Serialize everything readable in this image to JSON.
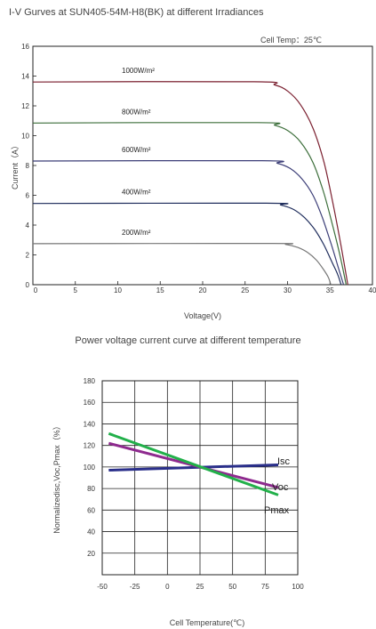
{
  "chart_data": [
    {
      "type": "line",
      "title": "I-V Gurves at SUN405-54M-H8(BK) at different Irradiances",
      "annotation": "Cell Temp：25℃",
      "xlabel": "Voltage(V)",
      "ylabel": "Current（A）",
      "xlim": [
        0,
        40
      ],
      "ylim": [
        0,
        16
      ],
      "xticks": [
        "0",
        "5",
        "10",
        "15",
        "20",
        "25",
        "30",
        "35",
        "40"
      ],
      "yticks": [
        "0",
        "2",
        "4",
        "6",
        "8",
        "10",
        "12",
        "14",
        "16"
      ],
      "grid": false,
      "series": [
        {
          "name": "1000W/m²",
          "color": "#7b2030",
          "points": [
            [
              0,
              13.6
            ],
            [
              26,
              13.62
            ],
            [
              28.5,
              13.4
            ],
            [
              30,
              13.0
            ],
            [
              31.5,
              12.1
            ],
            [
              33,
              10.5
            ],
            [
              34.3,
              8.2
            ],
            [
              35.4,
              5.3
            ],
            [
              36.3,
              2.6
            ],
            [
              37.1,
              0
            ]
          ]
        },
        {
          "name": "800W/m²",
          "color": "#3c6e3a",
          "points": [
            [
              0,
              10.85
            ],
            [
              26.5,
              10.88
            ],
            [
              28.5,
              10.7
            ],
            [
              30,
              10.35
            ],
            [
              31.5,
              9.6
            ],
            [
              33,
              8.2
            ],
            [
              34.2,
              6.3
            ],
            [
              35.3,
              4.0
            ],
            [
              36.2,
              1.9
            ],
            [
              36.9,
              0
            ]
          ]
        },
        {
          "name": "600W/m²",
          "color": "#3d3f78",
          "points": [
            [
              0,
              8.3
            ],
            [
              27,
              8.32
            ],
            [
              28.8,
              8.15
            ],
            [
              30.3,
              7.8
            ],
            [
              31.7,
              7.1
            ],
            [
              33,
              6.0
            ],
            [
              34.1,
              4.5
            ],
            [
              35.1,
              2.8
            ],
            [
              35.9,
              1.3
            ],
            [
              36.6,
              0
            ]
          ]
        },
        {
          "name": "400W/m²",
          "color": "#1f2d5c",
          "points": [
            [
              0,
              5.45
            ],
            [
              27.5,
              5.47
            ],
            [
              29.2,
              5.35
            ],
            [
              30.7,
              5.05
            ],
            [
              32,
              4.5
            ],
            [
              33.2,
              3.7
            ],
            [
              34.3,
              2.65
            ],
            [
              35.2,
              1.55
            ],
            [
              35.9,
              0.7
            ],
            [
              36.3,
              0
            ]
          ]
        },
        {
          "name": "200W/m²",
          "color": "#777777",
          "points": [
            [
              0,
              2.75
            ],
            [
              28,
              2.77
            ],
            [
              29.8,
              2.7
            ],
            [
              31.2,
              2.5
            ],
            [
              32.4,
              2.15
            ],
            [
              33.4,
              1.65
            ],
            [
              34.2,
              1.05
            ],
            [
              34.8,
              0.5
            ],
            [
              35.1,
              0
            ]
          ]
        }
      ]
    },
    {
      "type": "line",
      "title": "Power voltage current curve at different temperature",
      "xlabel": "Cell Temperature(℃)",
      "ylabel": "Normalizedisc,Voc,Pmax（%）",
      "xlim": [
        -50,
        100
      ],
      "ylim": [
        0,
        180
      ],
      "xticks": [
        "-50",
        "-25",
        "0",
        "25",
        "50",
        "75",
        "100"
      ],
      "yticks": [
        "20",
        "40",
        "60",
        "80",
        "100",
        "120",
        "140",
        "160",
        "180"
      ],
      "grid": true,
      "series": [
        {
          "name": "Isc",
          "color": "#2a2f8a",
          "points": [
            [
              -45,
              97
            ],
            [
              85,
              102
            ]
          ]
        },
        {
          "name": "Voc",
          "color": "#8e2a8e",
          "points": [
            [
              -45,
              122
            ],
            [
              85,
              81
            ]
          ]
        },
        {
          "name": "Pmax",
          "color": "#22b04a",
          "points": [
            [
              -45,
              131
            ],
            [
              85,
              74
            ]
          ]
        }
      ]
    }
  ]
}
